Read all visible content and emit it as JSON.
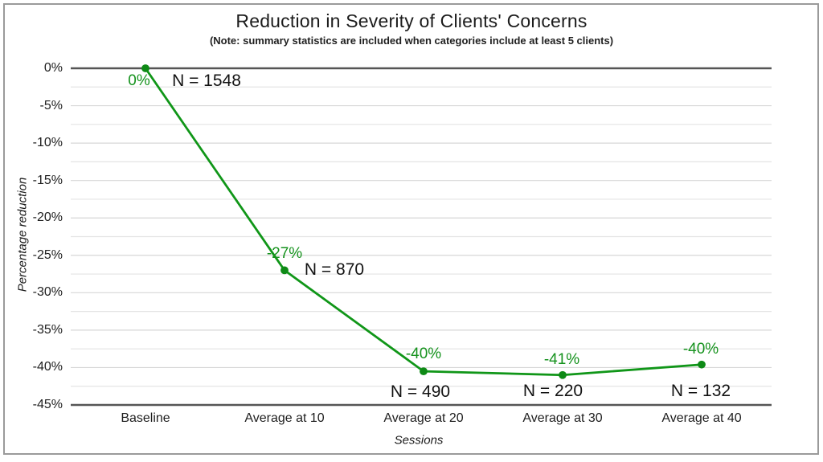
{
  "title": "Reduction in Severity of Clients' Concerns",
  "subtitle": "(Note: summary statistics are included when categories include at least 5 clients)",
  "colors": {
    "series_line": "#109618",
    "marker": "#0e8a16",
    "data_label_text": "#15921d",
    "grid_minor": "#e4e4e4",
    "grid_major": "#d7d7d7",
    "axis_line": "#555555",
    "frame_border": "#9a9a9a",
    "text": "#1e1e1e"
  },
  "y_axis": {
    "title": "Percentage reduction",
    "tick_labels": [
      "0%",
      "-5%",
      "-10%",
      "-15%",
      "-20%",
      "-25%",
      "-30%",
      "-35%",
      "-40%",
      "-45%"
    ]
  },
  "x_axis": {
    "title": "Sessions",
    "tick_labels": [
      "Baseline",
      "Average at 10",
      "Average at 20",
      "Average at 30",
      "Average at 40"
    ]
  },
  "chart_data": {
    "type": "line",
    "title": "Reduction in Severity of Clients' Concerns",
    "subtitle": "(Note: summary statistics are included when categories include at least 5 clients)",
    "categories": [
      "Baseline",
      "Average at 10",
      "Average at 20",
      "Average at 30",
      "Average at 40"
    ],
    "series": [
      {
        "name": "Percentage reduction",
        "values": [
          0,
          -27,
          -40.5,
          -41,
          -39.6
        ]
      }
    ],
    "point_labels": [
      "0%",
      "-27%",
      "-40%",
      "-41%",
      "-40%"
    ],
    "n_labels": [
      "N = 1548",
      "N = 870",
      "N = 490",
      "N = 220",
      "N = 132"
    ],
    "n_values": [
      1548,
      870,
      490,
      220,
      132
    ],
    "xlabel": "Sessions",
    "ylabel": "Percentage reduction",
    "ylim": [
      -45,
      0
    ],
    "ytick_step": 5,
    "minor_gridline_step": 2.5,
    "grid": true,
    "legend": "none",
    "marker": "circle"
  }
}
